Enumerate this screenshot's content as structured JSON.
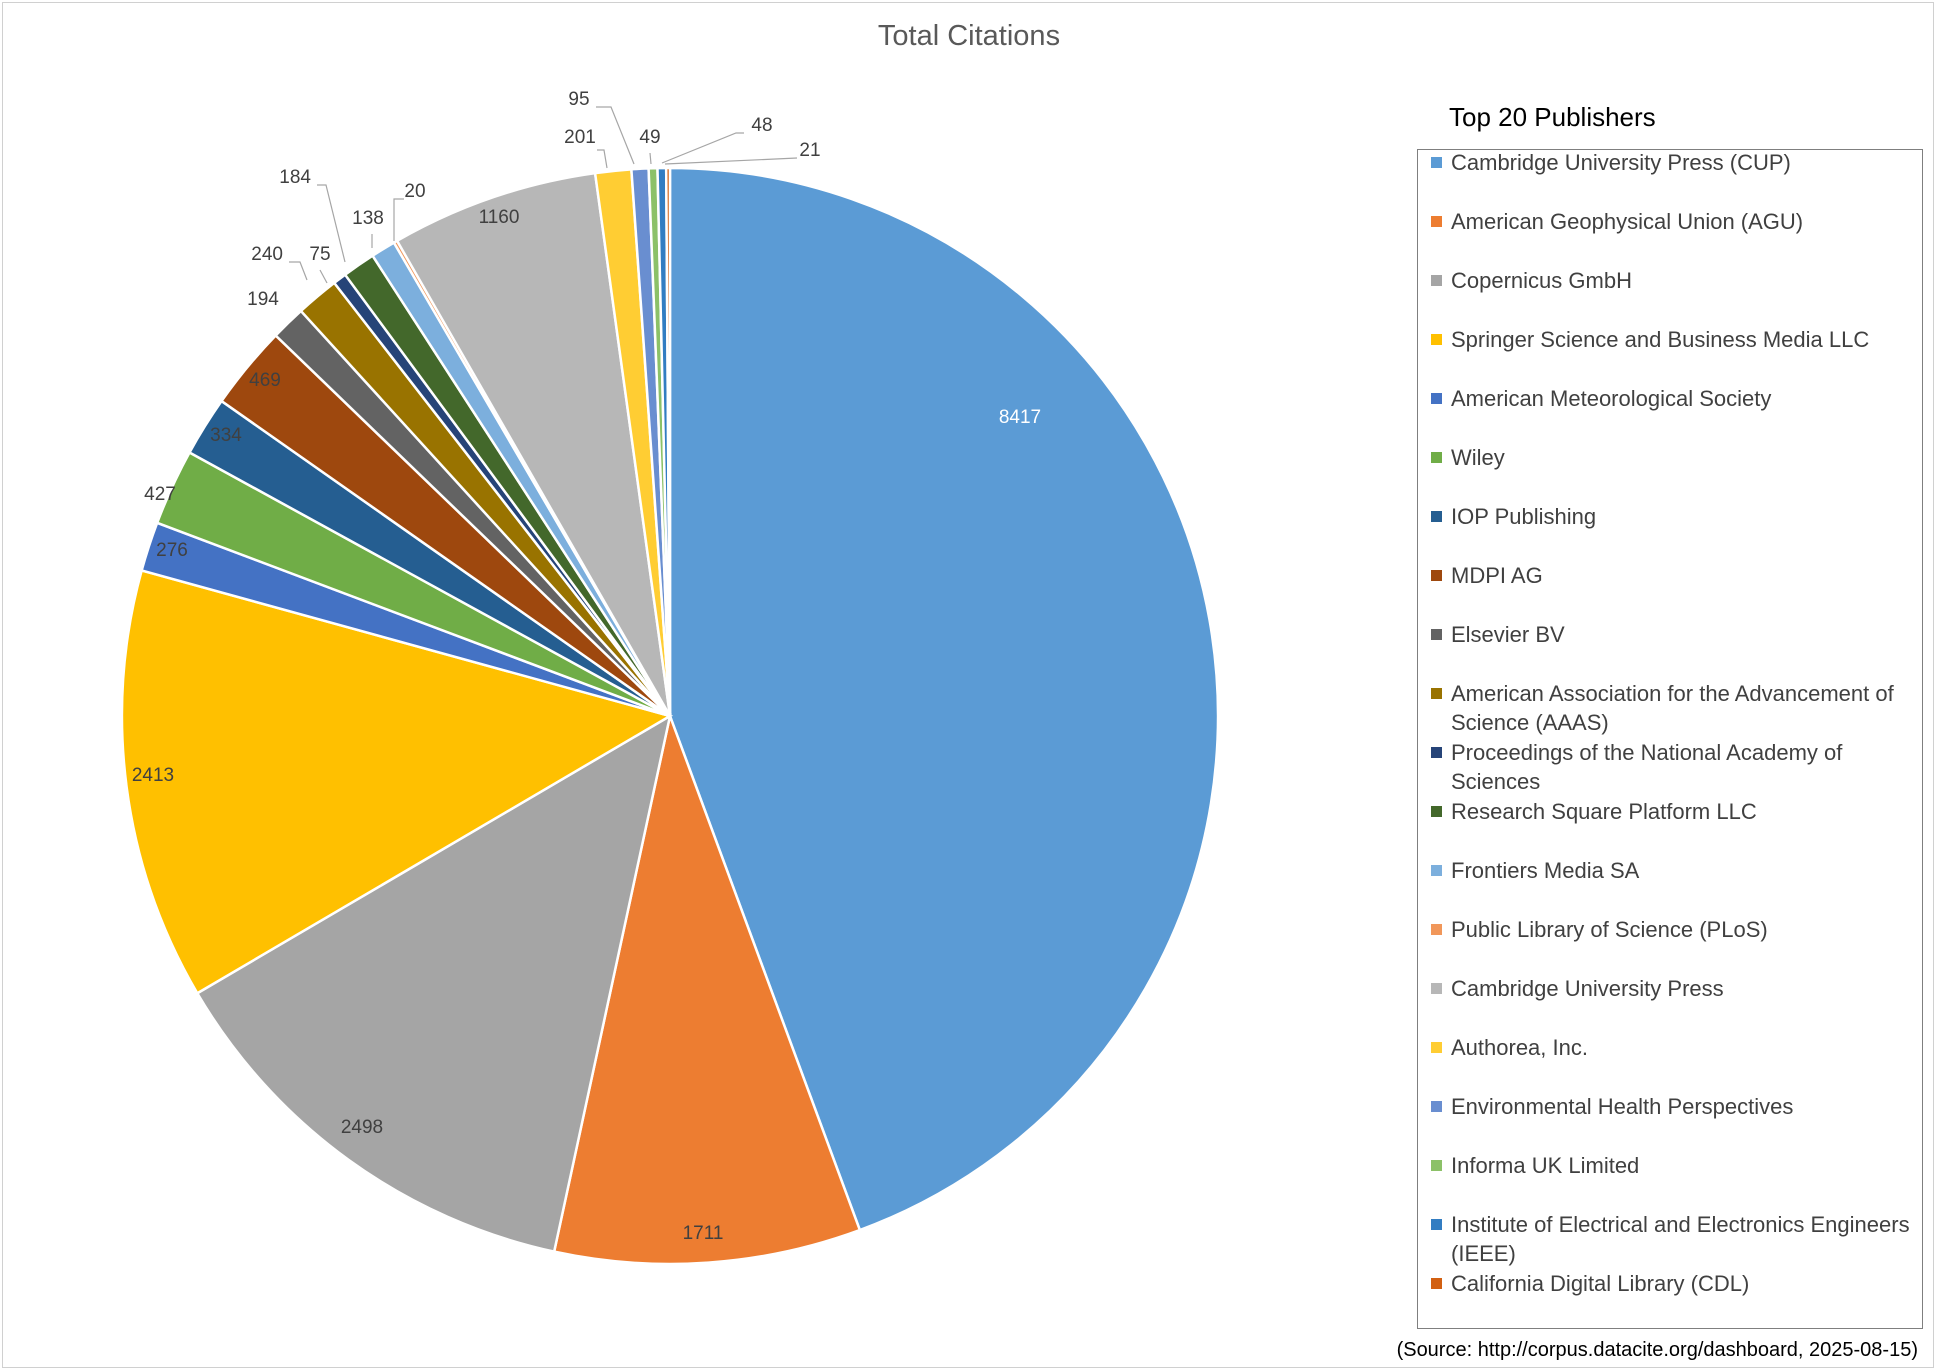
{
  "chart_data": {
    "type": "pie",
    "title": "Total Citations",
    "legend_title": "Top 20 Publishers",
    "legend_position": "right",
    "slices": [
      {
        "label": "Cambridge University Press (CUP)",
        "value": 8417,
        "color": "#5B9BD5"
      },
      {
        "label": "American Geophysical Union (AGU)",
        "value": 1711,
        "color": "#ED7D31"
      },
      {
        "label": "Copernicus GmbH",
        "value": 2498,
        "color": "#A5A5A5"
      },
      {
        "label": "Springer Science and Business Media LLC",
        "value": 2413,
        "color": "#FFC000"
      },
      {
        "label": "American Meteorological Society",
        "value": 276,
        "color": "#4472C4"
      },
      {
        "label": "Wiley",
        "value": 427,
        "color": "#70AD47"
      },
      {
        "label": "IOP Publishing",
        "value": 334,
        "color": "#255E91"
      },
      {
        "label": "MDPI AG",
        "value": 469,
        "color": "#9E480E"
      },
      {
        "label": "Elsevier BV",
        "value": 194,
        "color": "#636363"
      },
      {
        "label": "American Association for the Advancement of Science (AAAS)",
        "value": 240,
        "color": "#997300"
      },
      {
        "label": "Proceedings of the National Academy of Sciences",
        "value": 75,
        "color": "#264478"
      },
      {
        "label": "Research Square Platform LLC",
        "value": 184,
        "color": "#43682B"
      },
      {
        "label": "Frontiers Media SA",
        "value": 138,
        "color": "#7CAFDD"
      },
      {
        "label": "Public Library of Science (PLoS)",
        "value": 20,
        "color": "#F1975A"
      },
      {
        "label": "Cambridge University Press",
        "value": 1160,
        "color": "#B7B7B7"
      },
      {
        "label": "Authorea, Inc.",
        "value": 201,
        "color": "#FFCD33"
      },
      {
        "label": "Environmental Health Perspectives",
        "value": 95,
        "color": "#698ED0"
      },
      {
        "label": "Informa UK Limited",
        "value": 49,
        "color": "#8CC168"
      },
      {
        "label": "Institute of Electrical and Electronics Engineers (IEEE)",
        "value": 48,
        "color": "#327DC2"
      },
      {
        "label": "California Digital Library (CDL)",
        "value": 21,
        "color": "#D26012"
      }
    ]
  },
  "source_note": "(Source:  http://corpus.datacite.org/dashboard, 2025-08-15)"
}
